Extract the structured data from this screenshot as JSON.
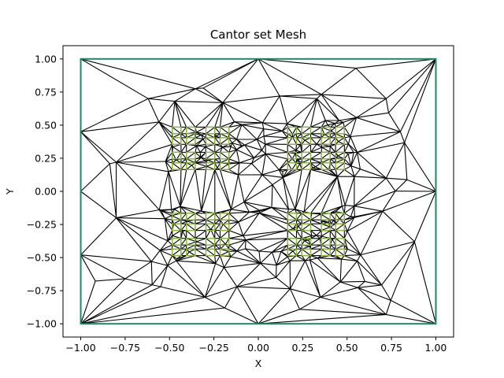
{
  "chart_data": {
    "type": "mesh",
    "title": "Cantor set Mesh",
    "xlabel": "X",
    "ylabel": "Y",
    "xlim": [
      -1.1,
      1.1
    ],
    "ylim": [
      -1.1,
      1.1
    ],
    "xticks": [
      -1.0,
      -0.75,
      -0.5,
      -0.25,
      0.0,
      0.25,
      0.5,
      0.75,
      1.0
    ],
    "yticks": [
      -1.0,
      -0.75,
      -0.5,
      -0.25,
      0.0,
      0.25,
      0.5,
      0.75,
      1.0
    ],
    "xtick_labels": [
      "−1.00",
      "−0.75",
      "−0.50",
      "−0.25",
      "0.00",
      "0.25",
      "0.50",
      "0.75",
      "1.00"
    ],
    "ytick_labels": [
      "−1.00",
      "−0.75",
      "−0.50",
      "−0.25",
      "0.00",
      "0.25",
      "0.50",
      "0.75",
      "1.00"
    ],
    "grid": false,
    "legend": "none",
    "boundary": [
      [
        -1,
        -1
      ],
      [
        1,
        -1
      ],
      [
        1,
        1
      ],
      [
        -1,
        1
      ]
    ],
    "boundary_color": "#1a8a6a",
    "hole_color": "#8dbb3a",
    "mesh_color": "#000000",
    "cantor_hole_centers_x": [
      -0.46,
      -0.38,
      -0.27,
      -0.19,
      0.19,
      0.27,
      0.38,
      0.46
    ],
    "cantor_hole_centers_y": [
      0.46,
      0.38,
      0.27,
      0.19,
      -0.19,
      -0.27,
      -0.38,
      -0.46
    ],
    "hole_half_size": 0.025,
    "outer_nodes": [
      [
        -1.0,
        1.0
      ],
      [
        -0.31,
        0.78
      ],
      [
        0.0,
        1.0
      ],
      [
        0.55,
        0.93
      ],
      [
        1.0,
        1.0
      ],
      [
        -0.62,
        0.7
      ],
      [
        -0.47,
        0.68
      ],
      [
        -0.2,
        0.67
      ],
      [
        0.12,
        0.72
      ],
      [
        0.33,
        0.7
      ],
      [
        0.72,
        0.7
      ],
      [
        -1.0,
        0.45
      ],
      [
        -1.0,
        0.0
      ],
      [
        -1.0,
        -0.48
      ],
      [
        1.0,
        0.0
      ],
      [
        0.8,
        0.45
      ],
      [
        0.88,
        -0.38
      ],
      [
        -1.0,
        -1.0
      ],
      [
        -0.3,
        -0.8
      ],
      [
        0.0,
        -1.0
      ],
      [
        0.35,
        -0.8
      ],
      [
        0.72,
        -0.93
      ],
      [
        1.0,
        -1.0
      ],
      [
        -0.75,
        -0.66
      ],
      [
        -0.55,
        -0.72
      ],
      [
        -0.12,
        -0.72
      ],
      [
        0.1,
        -0.65
      ],
      [
        0.6,
        -0.68
      ],
      [
        -0.8,
        0.22
      ],
      [
        -0.8,
        -0.2
      ],
      [
        0.72,
        0.1
      ],
      [
        0.7,
        -0.15
      ],
      [
        0.08,
        0.05
      ],
      [
        -0.08,
        -0.08
      ]
    ]
  }
}
